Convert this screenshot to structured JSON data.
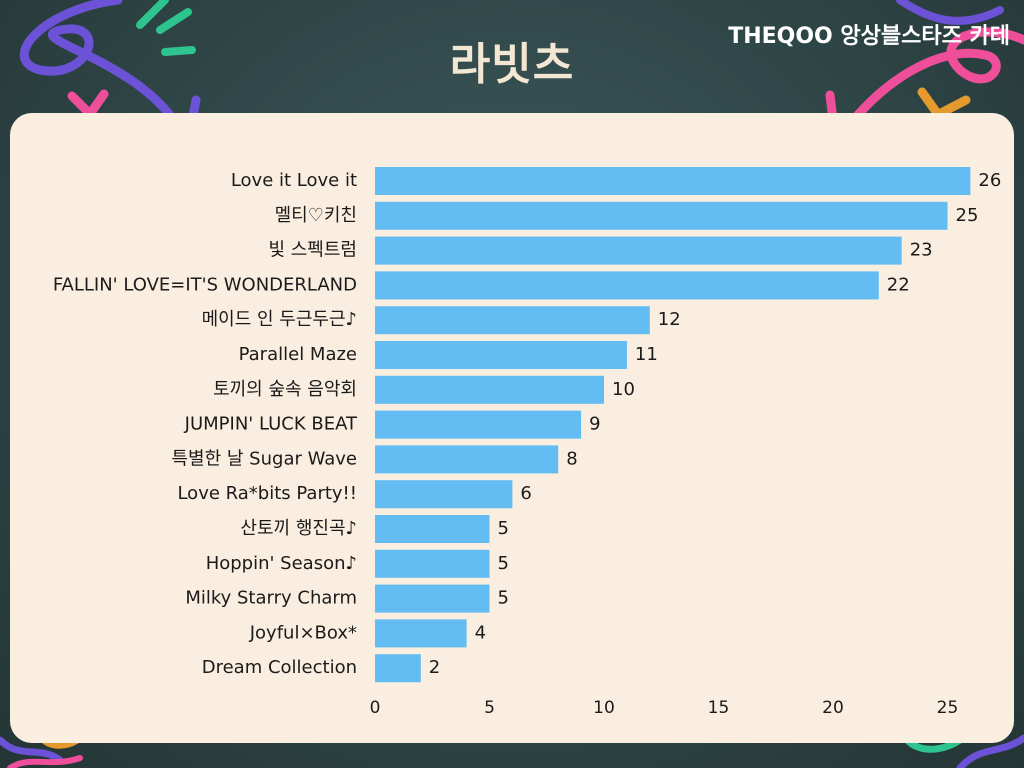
{
  "header": {
    "title": "라빗츠",
    "brand": "THEQOO 앙상블스타즈 카테"
  },
  "colors": {
    "bar": "#63bdf2",
    "background": "#2f4647",
    "card": "#f9eedf",
    "deco_purple": "#6b52d6",
    "deco_pink": "#ee4e9a",
    "deco_green": "#2ec48f",
    "deco_orange": "#e49a2c"
  },
  "chart_data": {
    "type": "bar",
    "orientation": "horizontal",
    "categories": [
      "Love it Love it",
      "멜티♡키친",
      "빛 스펙트럼",
      "FALLIN' LOVE=IT'S WONDERLAND",
      "메이드 인 두근두근♪",
      "Parallel Maze",
      "토끼의 숲속 음악회",
      "JUMPIN' LUCK BEAT",
      "특별한 날 Sugar Wave",
      "Love Ra*bits Party!!",
      "산토끼 행진곡♪",
      "Hoppin' Season♪",
      "Milky Starry Charm",
      "Joyful×Box*",
      "Dream Collection"
    ],
    "values": [
      26,
      25,
      23,
      22,
      12,
      11,
      10,
      9,
      8,
      6,
      5,
      5,
      5,
      4,
      2
    ],
    "xlim": [
      0,
      26
    ],
    "xticks": [
      0,
      5,
      10,
      15,
      20,
      25
    ],
    "grid": false,
    "data_labels": true
  }
}
